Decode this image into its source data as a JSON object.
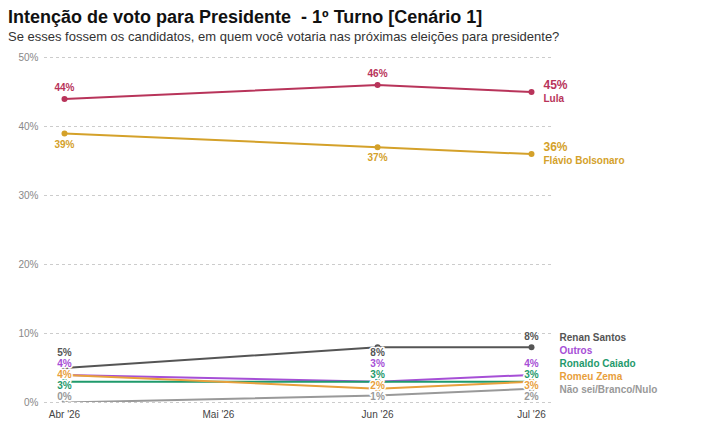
{
  "chart_data": {
    "type": "line",
    "title": "Intenção de voto para Presidente  - 1º Turno [Cenário 1]",
    "subtitle": "Se esses fossem os candidatos, em quem você votaria nas próximas eleições para presidente?",
    "x": [
      "2026-04",
      "2026-06",
      "2026-07"
    ],
    "xlim": [
      "2026-04",
      "2026-07"
    ],
    "xticks": [
      {
        "value": "2026-04",
        "label": "Abr '26"
      },
      {
        "value": "2026-05",
        "label": "Mai '26"
      },
      {
        "value": "2026-06",
        "label": "Jun '26"
      },
      {
        "value": "2026-07",
        "label": "Jul '26"
      }
    ],
    "ylim": [
      0,
      50
    ],
    "yticks": [
      {
        "value": 0,
        "label": "0%"
      },
      {
        "value": 10,
        "label": "10%"
      },
      {
        "value": 20,
        "label": "20%"
      },
      {
        "value": 30,
        "label": "30%"
      },
      {
        "value": 40,
        "label": "40%"
      },
      {
        "value": 50,
        "label": "50%"
      }
    ],
    "grid": true,
    "data_labels": true,
    "marker": "circle",
    "series": [
      {
        "name": "Lula",
        "color": "#b8345a",
        "values": [
          44,
          46,
          45
        ],
        "value_labels": [
          "44%",
          "46%",
          "45%"
        ]
      },
      {
        "name": "Flávio Bolsonaro",
        "color": "#d4a12a",
        "values": [
          39,
          37,
          36
        ],
        "value_labels": [
          "39%",
          "37%",
          "36%"
        ]
      },
      {
        "name": "Renan Santos",
        "color": "#555555",
        "values": [
          5,
          8,
          8
        ],
        "value_labels": [
          "5%",
          "8%",
          "8%"
        ]
      },
      {
        "name": "Outros",
        "color": "#a64fd6",
        "values": [
          4,
          3,
          4
        ],
        "value_labels": [
          "4%",
          "3%",
          "4%"
        ]
      },
      {
        "name": "Ronaldo Caiado",
        "color": "#1f9a6c",
        "values": [
          3,
          3,
          3
        ],
        "value_labels": [
          "3%",
          "3%",
          "3%"
        ]
      },
      {
        "name": "Romeu Zema",
        "color": "#e8a03c",
        "values": [
          4,
          2,
          3
        ],
        "value_labels": [
          "4%",
          "2%",
          "3%"
        ]
      },
      {
        "name": "Não sei/Branco/Nulo",
        "color": "#999999",
        "values": [
          0,
          1,
          2
        ],
        "value_labels": [
          "0%",
          "1%",
          "2%"
        ]
      }
    ]
  }
}
